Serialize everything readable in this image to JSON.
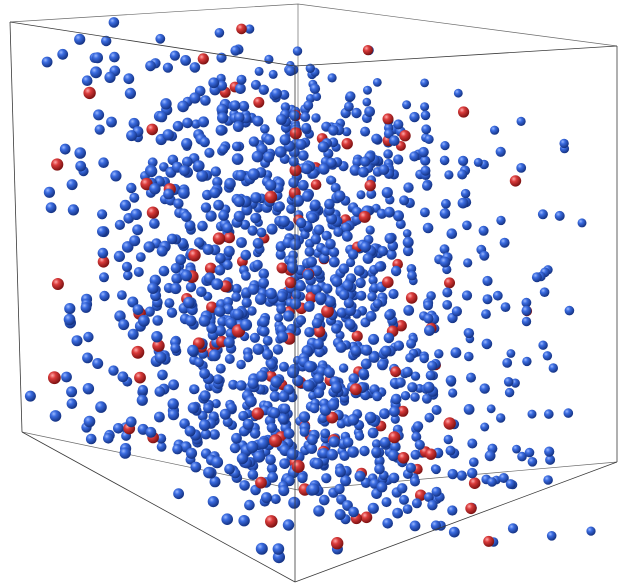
{
  "viewer": {
    "colors": {
      "background": "#ffffff",
      "box_edge": "#3a3a3a",
      "atom_majority": "#2f5fcf",
      "atom_minority": "#d23a3a"
    },
    "atom_species": [
      {
        "role": "majority",
        "color": "#2f5fcf"
      },
      {
        "role": "minority",
        "color": "#d23a3a"
      }
    ]
  }
}
